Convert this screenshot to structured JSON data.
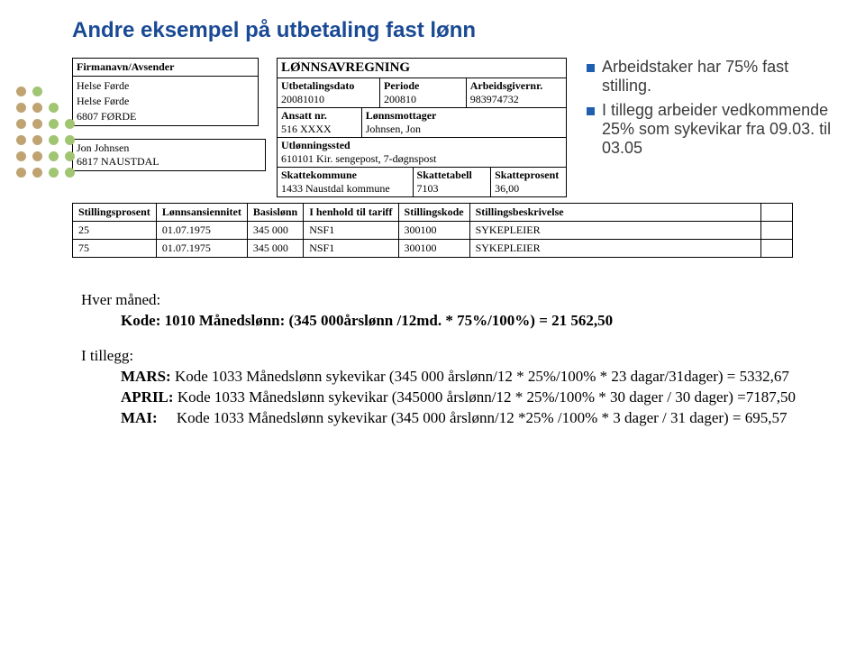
{
  "page_title": "Andre eksempel på utbetaling fast lønn",
  "dots_colors": {
    "rows": [
      [
        "#c0a373",
        "#a1c573"
      ],
      [
        "#c0a373",
        "#c0a373",
        "#a1c573"
      ],
      [
        "#c0a373",
        "#c0a373",
        "#a1c573",
        "#a1c573"
      ],
      [
        "#c0a373",
        "#c0a373",
        "#a1c573",
        "#a1c573"
      ],
      [
        "#c0a373",
        "#c0a373",
        "#a1c573",
        "#a1c573"
      ],
      [
        "#c0a373",
        "#c0a373",
        "#a1c573",
        "#a1c573"
      ]
    ]
  },
  "sender": {
    "label": "Firmanavn/Avsender",
    "name1": "Helse Førde",
    "name2": "Helse Førde",
    "city": "6807 FØRDE"
  },
  "payslip": {
    "title": "LØNNSAVREGNING",
    "utb_label": "Utbetalingsdato",
    "utb_val": "20081010",
    "per_label": "Periode",
    "per_val": "200810",
    "arb_label": "Arbeidsgivernr.",
    "arb_val": "983974732",
    "ans_label": "Ansatt nr.",
    "ans_val": "516 XXXX",
    "mot_label": "Lønnsmottager",
    "mot_val": "Johnsen, Jon",
    "utl_label": "Utlønningssted",
    "utl_val": "610101 Kir. sengepost, 7-døgnspost",
    "skk_label": "Skattekommune",
    "skk_val": "1433 Naustdal kommune",
    "skt_label": "Skattetabell",
    "skt_val": "7103",
    "skp_label": "Skatteprosent",
    "skp_val": "36,00"
  },
  "recipient": {
    "name": "Jon Johnsen",
    "addr": "6817 NAUSTDAL"
  },
  "bullet1": "Arbeidstaker har 75% fast stilling.",
  "bullet2": "I tillegg arbeider vedkommende 25%  som sykevikar fra 09.03. til 03.05",
  "pos": {
    "h1": "Stillingsprosent",
    "h2": "Lønnsansiennitet",
    "h3": "Basislønn",
    "h4": "I henhold til tariff",
    "h5": "Stillingskode",
    "h6": "Stillingsbeskrivelse",
    "r1c1": "25",
    "r1c2": "01.07.1975",
    "r1c3": "345 000",
    "r1c4": "NSF1",
    "r1c5": "300100",
    "r1c6": "SYKEPLEIER",
    "r2c1": "75",
    "r2c2": "01.07.1975",
    "r2c3": "345 000",
    "r2c4": "NSF1",
    "r2c5": "300100",
    "r2c6": "SYKEPLEIER"
  },
  "body": {
    "hver": "Hver måned:",
    "kode1010": "Kode: 1010 Månedslønn: (345 000årslønn /12md. * 75%/100%) = 21 562,50",
    "itillegg": "I tillegg:",
    "mars_label": "MARS:",
    "mars_rest": " Kode 1033 Månedslønn sykevikar (345 000 årslønn/12 * 25%/100% * 23 dagar/31dager) = 5332,67",
    "april_label": "APRIL:",
    "april_rest": " Kode 1033 Månedslønn sykevikar (345000 årslønn/12 * 25%/100% * 30 dager / 30 dager) =7187,50",
    "mai_label": "MAI:",
    "mai_rest": "     Kode 1033 Månedslønn sykevikar (345 000 årslønn/12 *25% /100% * 3 dager / 31 dager) = 695,57"
  }
}
